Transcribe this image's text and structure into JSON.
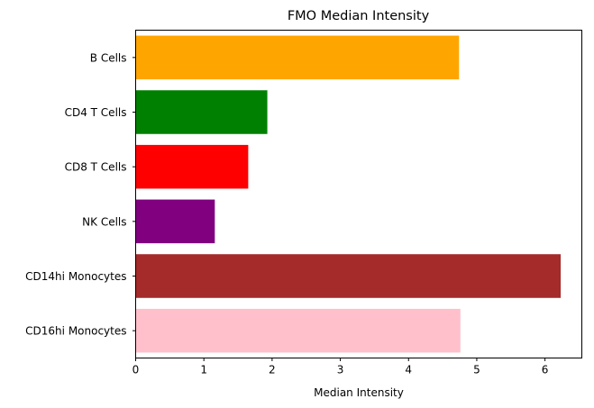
{
  "chart_data": {
    "type": "bar",
    "orientation": "horizontal",
    "title": "FMO Median Intensity",
    "xlabel": "Median Intensity",
    "ylabel": "",
    "categories": [
      "B Cells",
      "CD4 T Cells",
      "CD8 T Cells",
      "NK Cells",
      "CD14hi Monocytes",
      "CD16hi Monocytes"
    ],
    "values": [
      4.74,
      1.93,
      1.65,
      1.16,
      6.23,
      4.76
    ],
    "colors": [
      "#ffa500",
      "#008000",
      "#ff0000",
      "#800080",
      "#a52a2a",
      "#ffc0cb"
    ],
    "xlim": [
      0,
      6.54
    ],
    "xticks": [
      0,
      1,
      2,
      3,
      4,
      5,
      6
    ],
    "grid": false,
    "legend": "none"
  }
}
